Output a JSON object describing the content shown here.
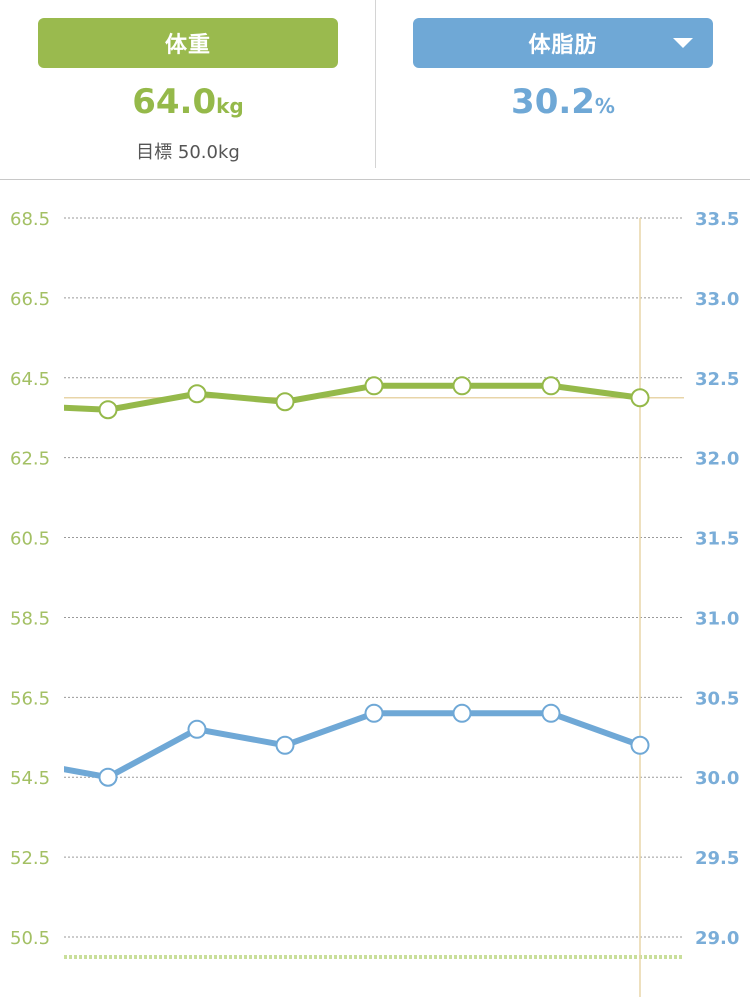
{
  "header": {
    "weight_tab_label": "体重",
    "fat_tab_label": "体脂肪",
    "fat_tab_icon": "chevron-down-icon",
    "weight_value": "64.0",
    "weight_unit": "kg",
    "goal_text": "目標 50.0kg",
    "fat_value": "30.2",
    "fat_unit": "%"
  },
  "colors": {
    "weight": "#95b94a",
    "fat": "#6fa8d6",
    "goal_line": "#c9df9a",
    "cursor_line": "#e8d5a8"
  },
  "chart_data": {
    "type": "line",
    "left_axis": {
      "ylim": [
        50.5,
        68.5
      ],
      "ticks": [
        "68.5",
        "66.5",
        "64.5",
        "62.5",
        "60.5",
        "58.5",
        "56.5",
        "54.5",
        "52.5",
        "50.5"
      ]
    },
    "right_axis": {
      "ylim": [
        29.0,
        33.5
      ],
      "ticks": [
        "33.5",
        "33.0",
        "32.5",
        "32.0",
        "31.5",
        "31.0",
        "30.5",
        "30.0",
        "29.5",
        "29.0"
      ]
    },
    "grid": true,
    "goal_weight": 50.0,
    "series": [
      {
        "key": "weight",
        "axis": "left",
        "values": [
          63.8,
          63.7,
          64.1,
          63.9,
          64.3,
          64.3,
          64.3,
          64.0
        ]
      },
      {
        "key": "fat",
        "axis": "right",
        "values": [
          30.1,
          30.0,
          30.3,
          30.2,
          30.4,
          30.4,
          30.4,
          30.2
        ]
      }
    ]
  }
}
